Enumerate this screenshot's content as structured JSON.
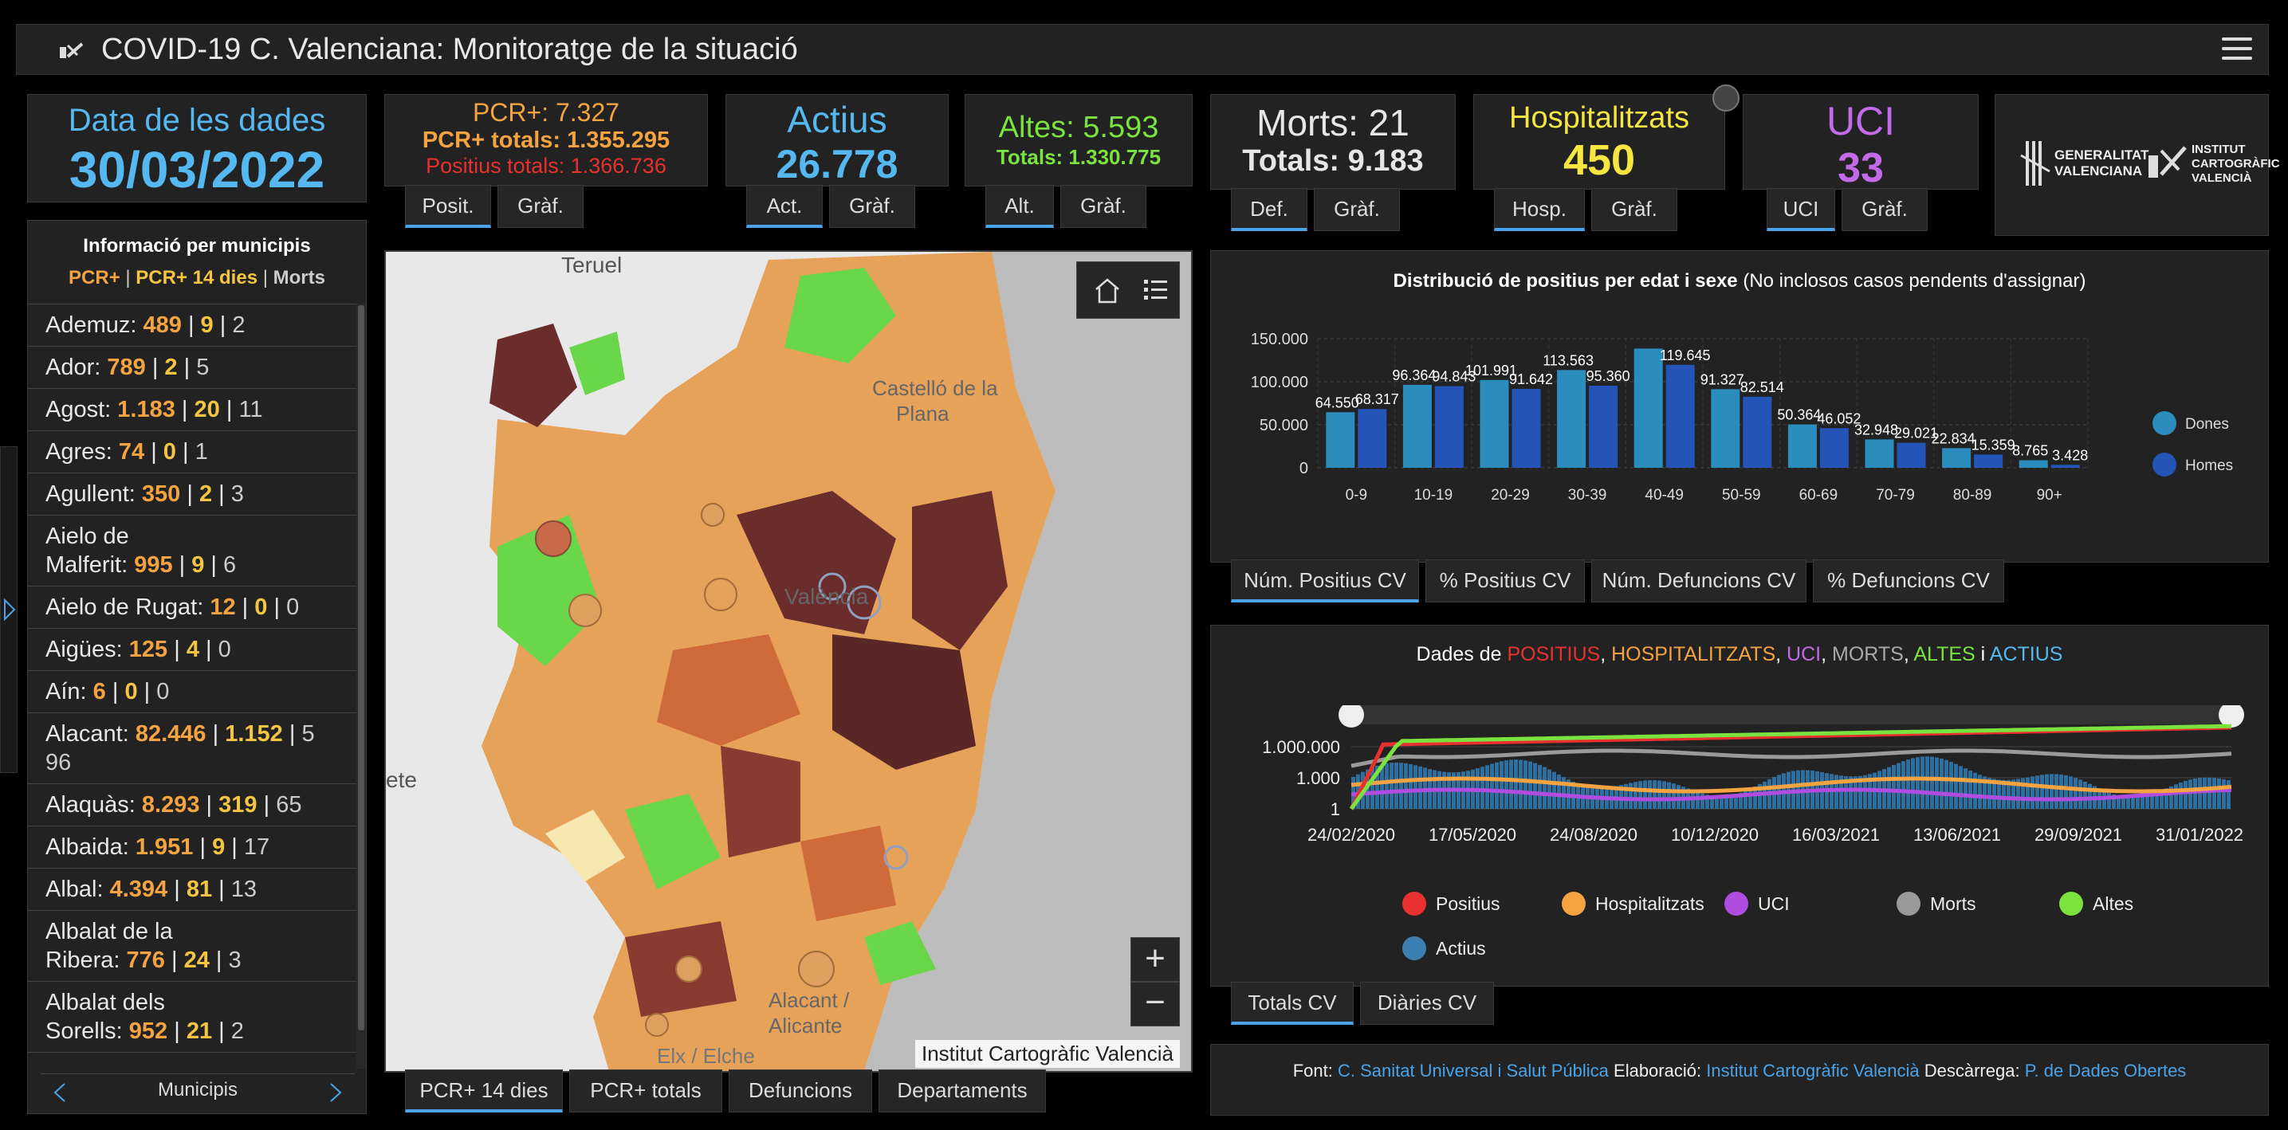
{
  "header": {
    "title": "COVID-19 C. Valenciana: Monitoratge de la situació"
  },
  "date_card": {
    "label": "Data de les dades",
    "value": "30/03/2022"
  },
  "cards": {
    "pcr": {
      "line1": "PCR+: 7.327",
      "line2": "PCR+ totals: 1.355.295",
      "line3": "Positius totals: 1.366.736",
      "tab1": "Posit.",
      "tab2": "Gràf."
    },
    "actius": {
      "label": "Actius",
      "value": "26.778",
      "tab1": "Act.",
      "tab2": "Gràf."
    },
    "altes": {
      "line1": "Altes: 5.593",
      "line2": "Totals: 1.330.775",
      "tab1": "Alt.",
      "tab2": "Gràf."
    },
    "morts": {
      "line1": "Morts: 21",
      "line2": "Totals: 9.183",
      "tab1": "Def.",
      "tab2": "Gràf."
    },
    "hosp": {
      "label": "Hospitalitzats",
      "value": "450",
      "tab1": "Hosp.",
      "tab2": "Gràf."
    },
    "uci": {
      "label": "UCI",
      "value": "33",
      "tab1": "UCI",
      "tab2": "Gràf."
    }
  },
  "logos": {
    "gva1": "GENERALITAT",
    "gva2": "VALENCIANA",
    "icv1": "INSTITUT",
    "icv2": "CARTOGRÀFIC",
    "icv3": "VALENCIÀ"
  },
  "sidebar": {
    "title": "Informació per municipis",
    "legend_a": "PCR+",
    "legend_b": "PCR+ 14 dies",
    "legend_c": "Morts",
    "sep": "|",
    "rows": [
      {
        "name": "Ademuz:",
        "a": "489",
        "b": "9",
        "c": "2"
      },
      {
        "name": "Ador:",
        "a": "789",
        "b": "2",
        "c": "5"
      },
      {
        "name": "Agost:",
        "a": "1.183",
        "b": "20",
        "c": "11"
      },
      {
        "name": "Agres:",
        "a": "74",
        "b": "0",
        "c": "1"
      },
      {
        "name": "Agullent:",
        "a": "350",
        "b": "2",
        "c": "3"
      },
      {
        "name1": "Aielo de",
        "name": "Malferit:",
        "a": "995",
        "b": "9",
        "c": "6"
      },
      {
        "name": "Aielo de Rugat:",
        "a": "12",
        "b": "0",
        "c": "0"
      },
      {
        "name": "Aigües:",
        "a": "125",
        "b": "4",
        "c": "0"
      },
      {
        "name": "Aín:",
        "a": "6",
        "b": "0",
        "c": "0"
      },
      {
        "name": "Alacant:",
        "a": "82.446",
        "b": "1.152",
        "c": "5",
        "c2": "96"
      },
      {
        "name": "Alaquàs:",
        "a": "8.293",
        "b": "319",
        "c": "65"
      },
      {
        "name": "Albaida:",
        "a": "1.951",
        "b": "9",
        "c": "17"
      },
      {
        "name": "Albal:",
        "a": "4.394",
        "b": "81",
        "c": "13"
      },
      {
        "name1": "Albalat de la",
        "name": "Ribera:",
        "a": "776",
        "b": "24",
        "c": "3"
      },
      {
        "name1": "Albalat dels",
        "name": "Sorells:",
        "a": "952",
        "b": "21",
        "c": "2"
      }
    ],
    "footer": "Municipis"
  },
  "map": {
    "labels": {
      "teruel": "Teruel",
      "castello1": "Castelló de la",
      "castello2": "Plana",
      "valencia": "València",
      "alacant1": "Alacant /",
      "alacant2": "Alicante",
      "elx": "Elx / Elche",
      "albacete": "ete"
    },
    "attribution": "Institut Cartogràfic Valencià",
    "tabs": [
      "PCR+ 14 dies",
      "PCR+ totals",
      "Defuncions",
      "Departaments"
    ]
  },
  "age_chart_tabs": [
    "Núm. Positius CV",
    "% Positius CV",
    "Núm. Defuncions CV",
    "% Defuncions CV"
  ],
  "timeline_tabs": [
    "Totals CV",
    "Diàries CV"
  ],
  "timeline": {
    "title_prefix": "Dades de",
    "positius": "POSITIUS",
    "hosp": "HOSPITALITZATS",
    "uci": "UCI",
    "morts": "MORTS",
    "altes": "ALTES",
    "and": "i",
    "actius": "ACTIUS",
    "y_ticks": [
      "1.000.000",
      "1.000",
      "1"
    ],
    "x_ticks": [
      "24/02/2020",
      "17/05/2020",
      "24/08/2020",
      "10/12/2020",
      "16/03/2021",
      "13/06/2021",
      "29/09/2021",
      "31/01/2022"
    ],
    "legend": [
      {
        "name": "Positius",
        "color": "#e8312f"
      },
      {
        "name": "Hospitalitzats",
        "color": "#f4a340"
      },
      {
        "name": "UCI",
        "color": "#b04de0"
      },
      {
        "name": "Morts",
        "color": "#9a9a9a"
      },
      {
        "name": "Altes",
        "color": "#7be33f"
      },
      {
        "name": "Actius",
        "color": "#3a7fb0"
      }
    ]
  },
  "footer": {
    "font_label": "Font:",
    "font_link": "C. Sanitat Universal i Salut Pública",
    "elab_label": "Elaboració:",
    "elab_link": "Institut Cartogràfic Valencià",
    "desc_label": "Descàrrega:",
    "desc_link": "P. de Dades Obertes"
  },
  "colors": {
    "dones": "#2b8cbe",
    "homes": "#2454b8",
    "accent": "#4aa3e8"
  },
  "chart_data": {
    "type": "bar",
    "title": "Distribució de positius per edat i sexe",
    "title_note": "(No inclosos casos pendents d'assignar)",
    "categories": [
      "0-9",
      "10-19",
      "20-29",
      "30-39",
      "40-49",
      "50-59",
      "60-69",
      "70-79",
      "80-89",
      "90+"
    ],
    "series": [
      {
        "name": "Dones",
        "values": [
          64550,
          96364,
          101991,
          113563,
          138500,
          91327,
          50364,
          32948,
          22834,
          8765
        ],
        "labels": [
          "64.550",
          "96.364",
          "101.991",
          "113.563",
          "",
          "91.327",
          "50.364",
          "32.948",
          "22.834",
          "8.765"
        ]
      },
      {
        "name": "Homes",
        "values": [
          68317,
          94843,
          91642,
          95360,
          119645,
          82514,
          46052,
          29021,
          15359,
          3428
        ],
        "labels": [
          "68.317",
          "94.843",
          "91.642",
          "95.360",
          "119.645",
          "82.514",
          "46.052",
          "29.021",
          "15.359",
          "3.428"
        ]
      }
    ],
    "y_ticks": [
      "150.000",
      "100.000",
      "50.000",
      "0"
    ],
    "ylim": [
      0,
      150000
    ],
    "grid": true,
    "legend": "right"
  }
}
